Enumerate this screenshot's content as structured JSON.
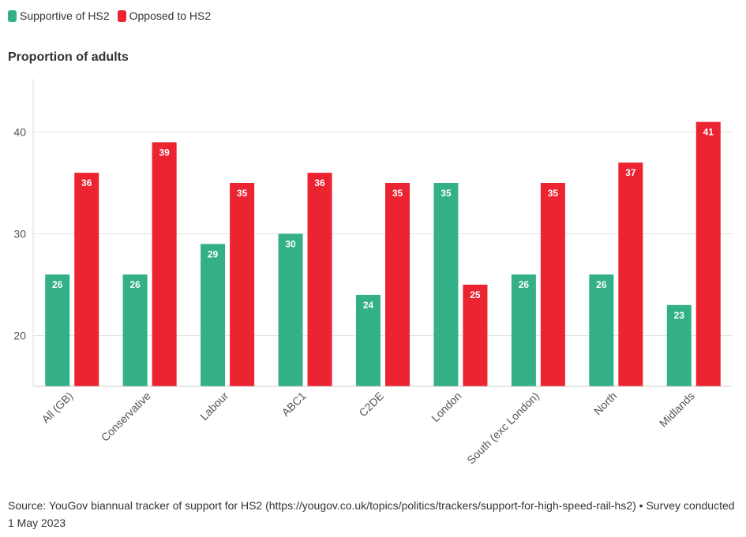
{
  "legend": [
    {
      "label": "Supportive of HS2",
      "color": "#33b088"
    },
    {
      "label": "Opposed to HS2",
      "color": "#ec2330"
    }
  ],
  "footer": {
    "source": "Source: YouGov biannual tracker of support for HS2 (https://yougov.co.uk/topics/politics/trackers/support-for-high-speed-rail-hs2) • Survey conducted 1 May 2023"
  },
  "chart_data": {
    "type": "bar",
    "title": "",
    "xlabel": "",
    "ylabel": "Proportion of adults",
    "categories": [
      "All (GB)",
      "Conservative",
      "Labour",
      "ABC1",
      "C2DE",
      "London",
      "South (exc London)",
      "North",
      "Midlands"
    ],
    "series": [
      {
        "name": "Supportive of HS2",
        "color": "#33b088",
        "values": [
          26,
          26,
          29,
          30,
          24,
          35,
          26,
          26,
          23
        ]
      },
      {
        "name": "Opposed to HS2",
        "color": "#ec2330",
        "values": [
          36,
          39,
          35,
          36,
          35,
          25,
          35,
          37,
          41
        ]
      }
    ],
    "yticks": [
      20,
      30,
      40
    ],
    "ylim": [
      15,
      45
    ],
    "grid": true,
    "data_labels": true,
    "legend_position": "top-left"
  }
}
